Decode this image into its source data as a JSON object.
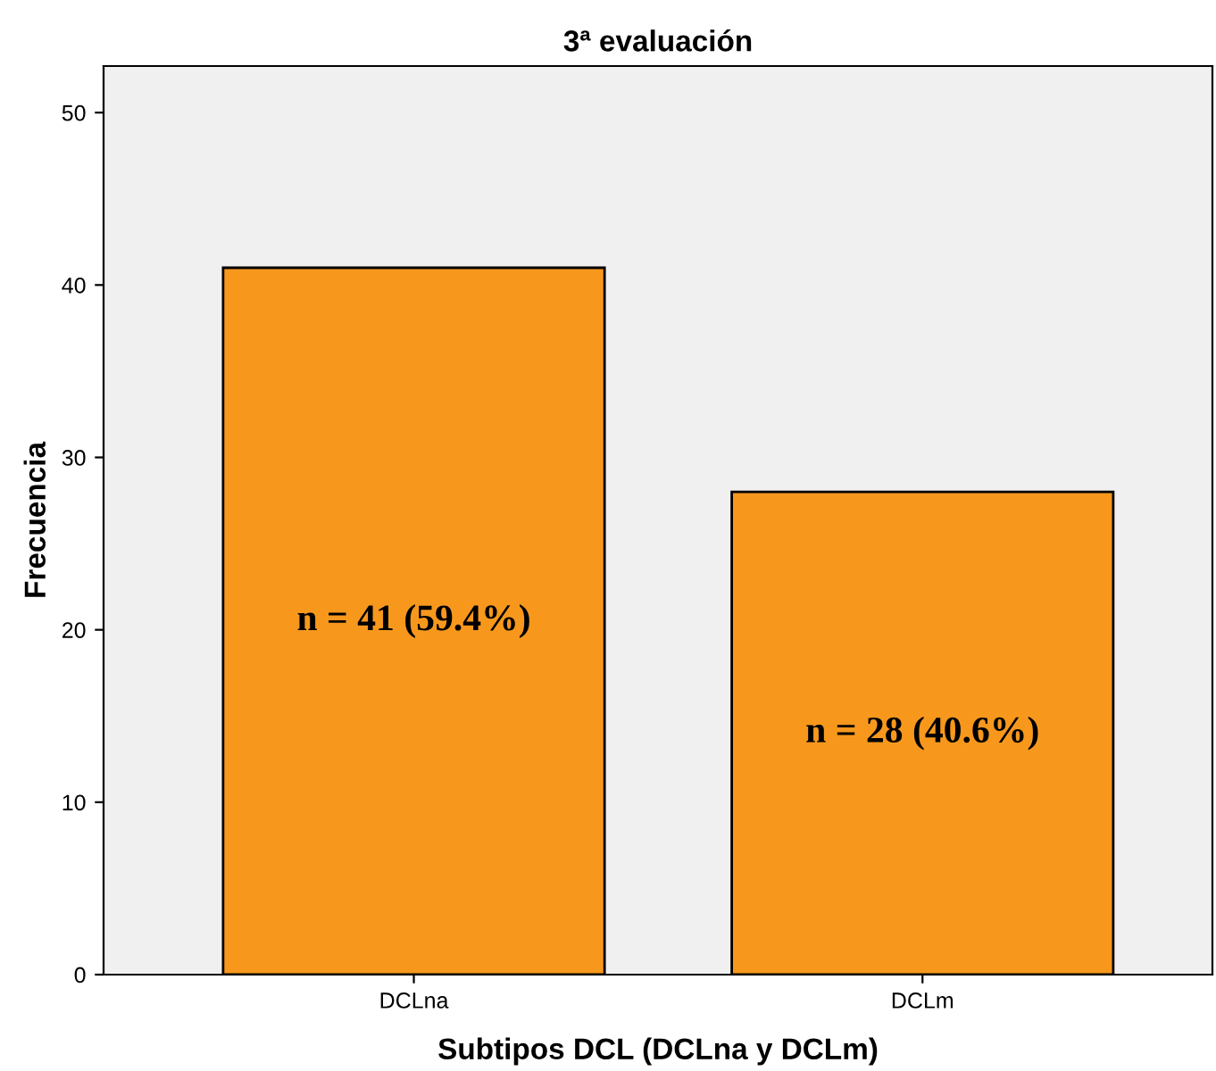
{
  "chart_data": {
    "type": "bar",
    "title": "3ª evaluación",
    "xlabel": "Subtipos DCL (DCLna y DCLm)",
    "ylabel": "Frecuencia",
    "categories": [
      "DCLna",
      "DCLm"
    ],
    "values": [
      41,
      28
    ],
    "value_labels": [
      "n = 41 (59.4%)",
      "n = 28 (40.6%)"
    ],
    "color": "#f7981d",
    "ylim": [
      0,
      52.7
    ],
    "yticks": [
      0,
      10,
      20,
      30,
      40,
      50
    ],
    "grid": false,
    "legend": false
  }
}
